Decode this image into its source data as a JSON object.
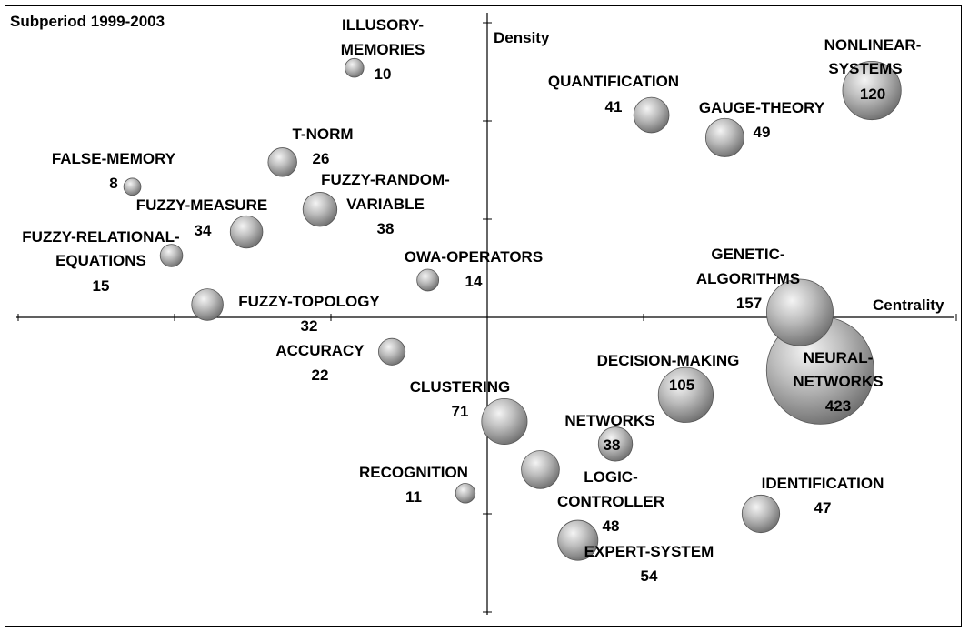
{
  "chart_data": {
    "type": "scatter",
    "title": "Subperiod 1999-2003",
    "xlabel": "Centrality",
    "ylabel": "Density",
    "grid": false,
    "points": [
      {
        "name": "NONLINEAR-SYSTEMS",
        "label_lines": [
          "NONLINEAR-",
          "SYSTEMS"
        ],
        "count": 120,
        "x": 2.46,
        "y": 2.31
      },
      {
        "name": "QUANTIFICATION",
        "label_lines": [
          "QUANTIFICATION"
        ],
        "count": 41,
        "x": 1.05,
        "y": 2.06
      },
      {
        "name": "GAUGE-THEORY",
        "label_lines": [
          "GAUGE-THEORY"
        ],
        "count": 49,
        "x": 1.52,
        "y": 1.83
      },
      {
        "name": "GENETIC-ALGORITHMS",
        "label_lines": [
          "GENETIC-",
          "ALGORITHMS"
        ],
        "count": 157,
        "x": 2.0,
        "y": 0.05
      },
      {
        "name": "NEURAL-NETWORKS",
        "label_lines": [
          "NEURAL-",
          "NETWORKS"
        ],
        "count": 423,
        "x": 2.13,
        "y": -0.54
      },
      {
        "name": "DECISION-MAKING",
        "label_lines": [
          "DECISION-MAKING"
        ],
        "count": 105,
        "x": 1.27,
        "y": -0.79
      },
      {
        "name": "NETWORKS",
        "label_lines": [
          "NETWORKS"
        ],
        "count": 38,
        "x": 0.82,
        "y": -1.29
      },
      {
        "name": "LOGIC-CONTROLLER",
        "label_lines": [
          "LOGIC-",
          "CONTROLLER"
        ],
        "count": 48,
        "x": 0.34,
        "y": -1.55
      },
      {
        "name": "IDENTIFICATION",
        "label_lines": [
          "IDENTIFICATION"
        ],
        "count": 47,
        "x": 1.75,
        "y": -2.0
      },
      {
        "name": "EXPERT-SYSTEM",
        "label_lines": [
          "EXPERT-SYSTEM"
        ],
        "count": 54,
        "x": 0.58,
        "y": -2.27
      },
      {
        "name": "CLUSTERING",
        "label_lines": [
          "CLUSTERING"
        ],
        "count": 71,
        "x": 0.11,
        "y": -1.06
      },
      {
        "name": "RECOGNITION",
        "label_lines": [
          "RECOGNITION"
        ],
        "count": 11,
        "x": -0.14,
        "y": -1.79
      },
      {
        "name": "ACCURACY",
        "label_lines": [
          "ACCURACY"
        ],
        "count": 22,
        "x": -0.61,
        "y": -0.35
      },
      {
        "name": "OWA-OPERATORS",
        "label_lines": [
          "OWA-OPERATORS"
        ],
        "count": 14,
        "x": -0.38,
        "y": 0.38
      },
      {
        "name": "FUZZY-TOPOLOGY",
        "label_lines": [
          "FUZZY-TOPOLOGY"
        ],
        "count": 32,
        "x": -1.79,
        "y": 0.13
      },
      {
        "name": "FUZZY-RELATIONAL-EQUATIONS",
        "label_lines": [
          "FUZZY-RELATIONAL-",
          "EQUATIONS"
        ],
        "count": 15,
        "x": -2.02,
        "y": 0.63
      },
      {
        "name": "FUZZY-MEASURE",
        "label_lines": [
          "FUZZY-MEASURE"
        ],
        "count": 34,
        "x": -1.54,
        "y": 0.87
      },
      {
        "name": "FUZZY-RANDOM-VARIABLE",
        "label_lines": [
          "FUZZY-RANDOM-",
          "VARIABLE"
        ],
        "count": 38,
        "x": -1.07,
        "y": 1.1
      },
      {
        "name": "FALSE-MEMORY",
        "label_lines": [
          "FALSE-MEMORY"
        ],
        "count": 8,
        "x": -2.27,
        "y": 1.33
      },
      {
        "name": "T-NORM",
        "label_lines": [
          "T-NORM"
        ],
        "count": 26,
        "x": -1.31,
        "y": 1.58
      },
      {
        "name": "ILLUSORY-MEMORIES",
        "label_lines": [
          "ILLUSORY-",
          "MEMORIES"
        ],
        "count": 10,
        "x": -0.85,
        "y": 2.54
      }
    ]
  }
}
